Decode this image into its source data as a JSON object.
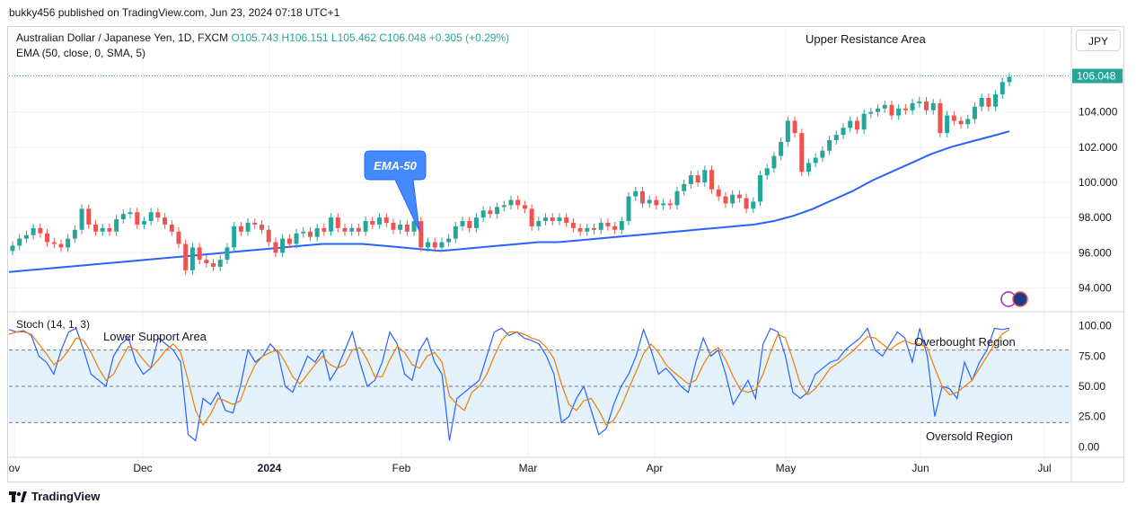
{
  "header": {
    "published": "bukky456 published on TradingView.com, Jun 23, 2024 07:18 UTC+1"
  },
  "legend": {
    "symbol": "Australian Dollar / Japanese Yen, 1D, FXCM",
    "open": "O105.743",
    "high": "H106.151",
    "low": "L105.462",
    "close": "C106.048",
    "change": "+0.305 (+0.29%)",
    "ema": "EMA (50, close, 0, SMA, 5)",
    "stoch": "Stoch (14, 1, 3)"
  },
  "currency": "JPY",
  "annotations": {
    "upper_resistance": "Upper Resistance Area",
    "lower_support": "Lower Support Area",
    "overbought": "Overbought Region",
    "oversold": "Oversold Region",
    "ema_callout": "EMA-50"
  },
  "price_badge": "106.048",
  "footer": {
    "brand": "TradingView"
  },
  "colors": {
    "up": "#26a69a",
    "down": "#ef5350",
    "ema": "#2962ff",
    "k": "#2962ff",
    "d": "#f57c00",
    "band": "#e3f2fd"
  },
  "chart_data": [
    {
      "type": "candlestick",
      "title": "",
      "ylim": [
        93.0,
        107.2
      ],
      "y_ticks": [
        "94.000",
        "96.000",
        "98.000",
        "100.000",
        "102.000",
        "104.000"
      ],
      "x_ticks": [
        "ov",
        "Dec",
        "2024",
        "Feb",
        "Mar",
        "Apr",
        "May",
        "Jun",
        "Jul"
      ],
      "current_price": 106.048,
      "close": [
        96.4,
        96.8,
        97.0,
        97.4,
        97.1,
        96.6,
        96.5,
        96.3,
        96.8,
        97.3,
        98.5,
        97.6,
        97.2,
        97.4,
        97.2,
        97.9,
        98.2,
        98.3,
        97.6,
        97.8,
        98.3,
        98.0,
        97.6,
        97.2,
        96.5,
        95.0,
        96.3,
        95.6,
        95.4,
        95.2,
        95.6,
        96.3,
        97.5,
        97.2,
        97.7,
        97.6,
        97.3,
        96.6,
        96.0,
        96.8,
        96.5,
        97.1,
        97.2,
        96.9,
        97.4,
        97.2,
        98.0,
        97.4,
        97.2,
        97.4,
        97.2,
        97.8,
        97.6,
        98.0,
        97.7,
        97.3,
        97.6,
        97.2,
        97.8,
        96.3,
        96.6,
        96.3,
        96.6,
        96.8,
        97.5,
        97.8,
        97.4,
        98.0,
        98.4,
        98.2,
        98.6,
        98.7,
        99.0,
        98.7,
        98.5,
        97.5,
        97.8,
        98.0,
        97.8,
        98.0,
        97.7,
        97.4,
        97.2,
        97.4,
        97.3,
        97.7,
        97.5,
        97.3,
        97.8,
        99.2,
        99.5,
        98.8,
        99.0,
        98.7,
        98.8,
        98.7,
        99.5,
        99.9,
        100.4,
        100.0,
        100.7,
        99.6,
        99.2,
        98.8,
        99.3,
        99.1,
        98.5,
        98.9,
        100.4,
        100.8,
        101.5,
        102.3,
        103.5,
        102.8,
        100.6,
        101.1,
        101.4,
        101.8,
        102.4,
        102.7,
        103.1,
        103.5,
        103.0,
        103.9,
        104.0,
        104.2,
        104.4,
        103.8,
        104.2,
        104.1,
        104.5,
        104.6,
        104.1,
        104.5,
        102.8,
        103.8,
        103.5,
        103.3,
        103.6,
        104.3,
        104.8,
        104.3,
        105.0,
        105.7,
        106.0
      ],
      "ema50": [
        94.9,
        95.0,
        95.1,
        95.2,
        95.3,
        95.4,
        95.5,
        95.6,
        95.7,
        95.8,
        95.9,
        96.0,
        96.1,
        96.2,
        96.3,
        96.4,
        96.5,
        96.5,
        96.5,
        96.4,
        96.3,
        96.2,
        96.1,
        96.2,
        96.3,
        96.4,
        96.5,
        96.6,
        96.6,
        96.7,
        96.8,
        96.9,
        97.0,
        97.1,
        97.2,
        97.3,
        97.4,
        97.5,
        97.6,
        97.8,
        98.1,
        98.5,
        99.0,
        99.5,
        100.1,
        100.6,
        101.1,
        101.6,
        102.0,
        102.3,
        102.6,
        102.9
      ]
    },
    {
      "type": "line",
      "title": "",
      "ylim": [
        -5,
        105
      ],
      "y_ticks": [
        "0.00",
        "25.00",
        "50.00",
        "75.00",
        "100.00"
      ],
      "levels": [
        20,
        50,
        80
      ],
      "series": [
        {
          "values": [
            97,
            95,
            96,
            92,
            75,
            70,
            60,
            80,
            95,
            98,
            80,
            60,
            55,
            50,
            75,
            85,
            90,
            70,
            60,
            65,
            90,
            85,
            80,
            70,
            10,
            5,
            40,
            35,
            45,
            30,
            28,
            50,
            80,
            70,
            75,
            85,
            78,
            50,
            45,
            60,
            75,
            70,
            80,
            55,
            65,
            80,
            95,
            70,
            50,
            55,
            70,
            95,
            85,
            60,
            55,
            80,
            90,
            70,
            60,
            5,
            40,
            45,
            50,
            55,
            75,
            95,
            98,
            92,
            95,
            90,
            88,
            85,
            75,
            60,
            20,
            25,
            40,
            50,
            30,
            10,
            15,
            35,
            50,
            60,
            75,
            97,
            80,
            60,
            65,
            58,
            50,
            45,
            70,
            90,
            75,
            80,
            60,
            35,
            45,
            55,
            40,
            85,
            98,
            95,
            75,
            45,
            40,
            45,
            60,
            65,
            70,
            72,
            80,
            85,
            90,
            98,
            80,
            75,
            85,
            95,
            90,
            70,
            98,
            75,
            25,
            50,
            48,
            40,
            70,
            55,
            70,
            80,
            98,
            97,
            98
          ]
        },
        {
          "values": [
            93,
            95,
            95,
            93,
            85,
            77,
            68,
            72,
            80,
            90,
            88,
            78,
            65,
            55,
            60,
            72,
            83,
            80,
            72,
            65,
            72,
            80,
            85,
            78,
            55,
            30,
            18,
            27,
            40,
            38,
            35,
            38,
            55,
            68,
            75,
            78,
            80,
            70,
            58,
            52,
            60,
            68,
            75,
            68,
            65,
            68,
            80,
            82,
            72,
            58,
            58,
            72,
            83,
            78,
            68,
            65,
            75,
            78,
            70,
            42,
            35,
            30,
            45,
            50,
            60,
            75,
            88,
            95,
            95,
            93,
            90,
            88,
            82,
            73,
            52,
            35,
            30,
            38,
            40,
            30,
            18,
            22,
            33,
            48,
            62,
            77,
            85,
            78,
            68,
            62,
            57,
            52,
            55,
            68,
            78,
            82,
            72,
            58,
            47,
            45,
            47,
            60,
            78,
            93,
            90,
            72,
            52,
            43,
            48,
            56,
            65,
            69,
            74,
            79,
            85,
            91,
            90,
            85,
            80,
            85,
            88,
            85,
            85,
            82,
            65,
            50,
            43,
            45,
            50,
            55,
            65,
            75,
            85,
            93,
            97
          ]
        }
      ]
    }
  ]
}
